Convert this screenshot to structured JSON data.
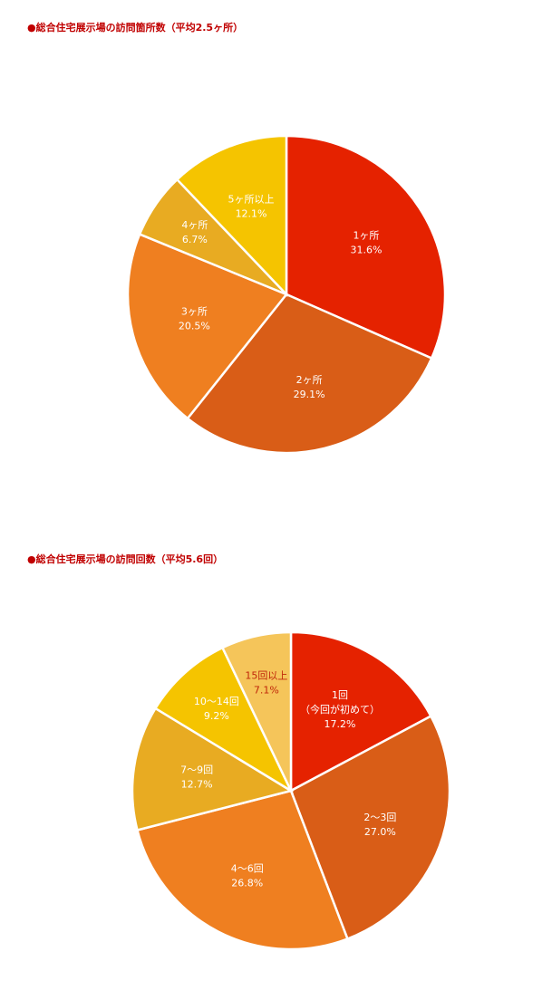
{
  "chart_data": [
    {
      "type": "pie",
      "title": "●総合住宅展示場の訪問箇所数（平均2.5ヶ所）",
      "categories": [
        "1ヶ所",
        "2ヶ所",
        "3ヶ所",
        "4ヶ所",
        "5ヶ所以上"
      ],
      "values": [
        31.6,
        29.1,
        20.5,
        6.7,
        12.1
      ],
      "value_labels": [
        "31.6%",
        "29.1%",
        "20.5%",
        "6.7%",
        "12.1%"
      ],
      "colors": [
        "#e52200",
        "#d95d17",
        "#ef7f20",
        "#e8ab22",
        "#f5c400"
      ],
      "label_colors": [
        "#ffffff",
        "#ffffff",
        "#ffffff",
        "#ffffff",
        "#ffffff"
      ]
    },
    {
      "type": "pie",
      "title": "●総合住宅展示場の訪問回数（平均5.6回）",
      "categories": [
        "1回\n（今回が初めて）",
        "2〜3回",
        "4〜6回",
        "7〜9回",
        "10〜14回",
        "15回以上"
      ],
      "values": [
        17.2,
        27.0,
        26.8,
        12.7,
        9.2,
        7.1
      ],
      "value_labels": [
        "17.2%",
        "27.0%",
        "26.8%",
        "12.7%",
        "9.2%",
        "7.1%"
      ],
      "colors": [
        "#e52200",
        "#d95d17",
        "#ef7f20",
        "#e8ab22",
        "#f5c400",
        "#f5c55a"
      ],
      "label_colors": [
        "#ffffff",
        "#ffffff",
        "#ffffff",
        "#ffffff",
        "#ffffff",
        "#c0270a"
      ]
    }
  ]
}
